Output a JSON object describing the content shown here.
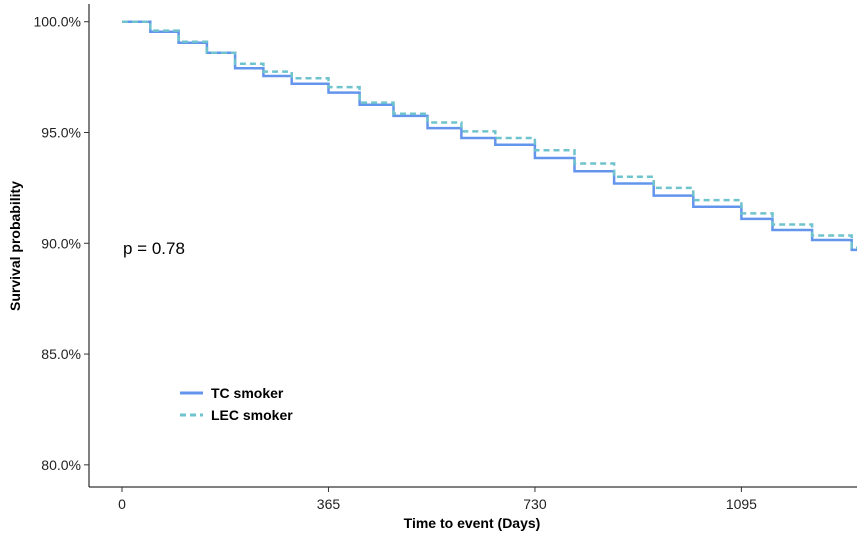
{
  "chart_data": {
    "type": "line",
    "xlabel": "Time to event (Days)",
    "ylabel": "Survival probability",
    "xlim": [
      0,
      1340
    ],
    "ylim": [
      79.0,
      100.8
    ],
    "x_ticks": [
      0,
      365,
      730,
      1095
    ],
    "y_ticks": [
      80,
      85,
      90,
      95,
      100
    ],
    "x_tick_labels": [
      "0",
      "365",
      "730",
      "1095"
    ],
    "y_tick_labels": [
      "80.0%",
      "85.0%",
      "90.0%",
      "95.0%",
      "100.0%"
    ],
    "annotation": "p = 0.78",
    "legend_position": "bottom-left",
    "series": [
      {
        "name": "TC smoker",
        "color": "#6495ED",
        "style": "solid",
        "x": [
          0,
          50,
          100,
          150,
          200,
          250,
          300,
          365,
          420,
          480,
          540,
          600,
          660,
          730,
          800,
          870,
          940,
          1010,
          1095,
          1150,
          1220,
          1290,
          1340
        ],
        "y": [
          100.0,
          99.55,
          99.05,
          98.6,
          97.9,
          97.55,
          97.2,
          96.8,
          96.25,
          95.75,
          95.2,
          94.75,
          94.45,
          93.85,
          93.25,
          92.7,
          92.15,
          91.65,
          91.1,
          90.6,
          90.15,
          89.7,
          89.2
        ]
      },
      {
        "name": "LEC smoker",
        "color": "#6FC3CC",
        "style": "dashed",
        "x": [
          0,
          50,
          100,
          150,
          200,
          250,
          300,
          365,
          420,
          480,
          540,
          600,
          660,
          730,
          800,
          870,
          940,
          1010,
          1095,
          1150,
          1220,
          1290,
          1340
        ],
        "y": [
          100.0,
          99.6,
          99.1,
          98.6,
          98.1,
          97.75,
          97.45,
          97.05,
          96.35,
          95.85,
          95.45,
          95.05,
          94.75,
          94.2,
          93.6,
          93.0,
          92.5,
          91.95,
          91.35,
          90.85,
          90.35,
          89.8,
          89.35
        ]
      }
    ]
  }
}
